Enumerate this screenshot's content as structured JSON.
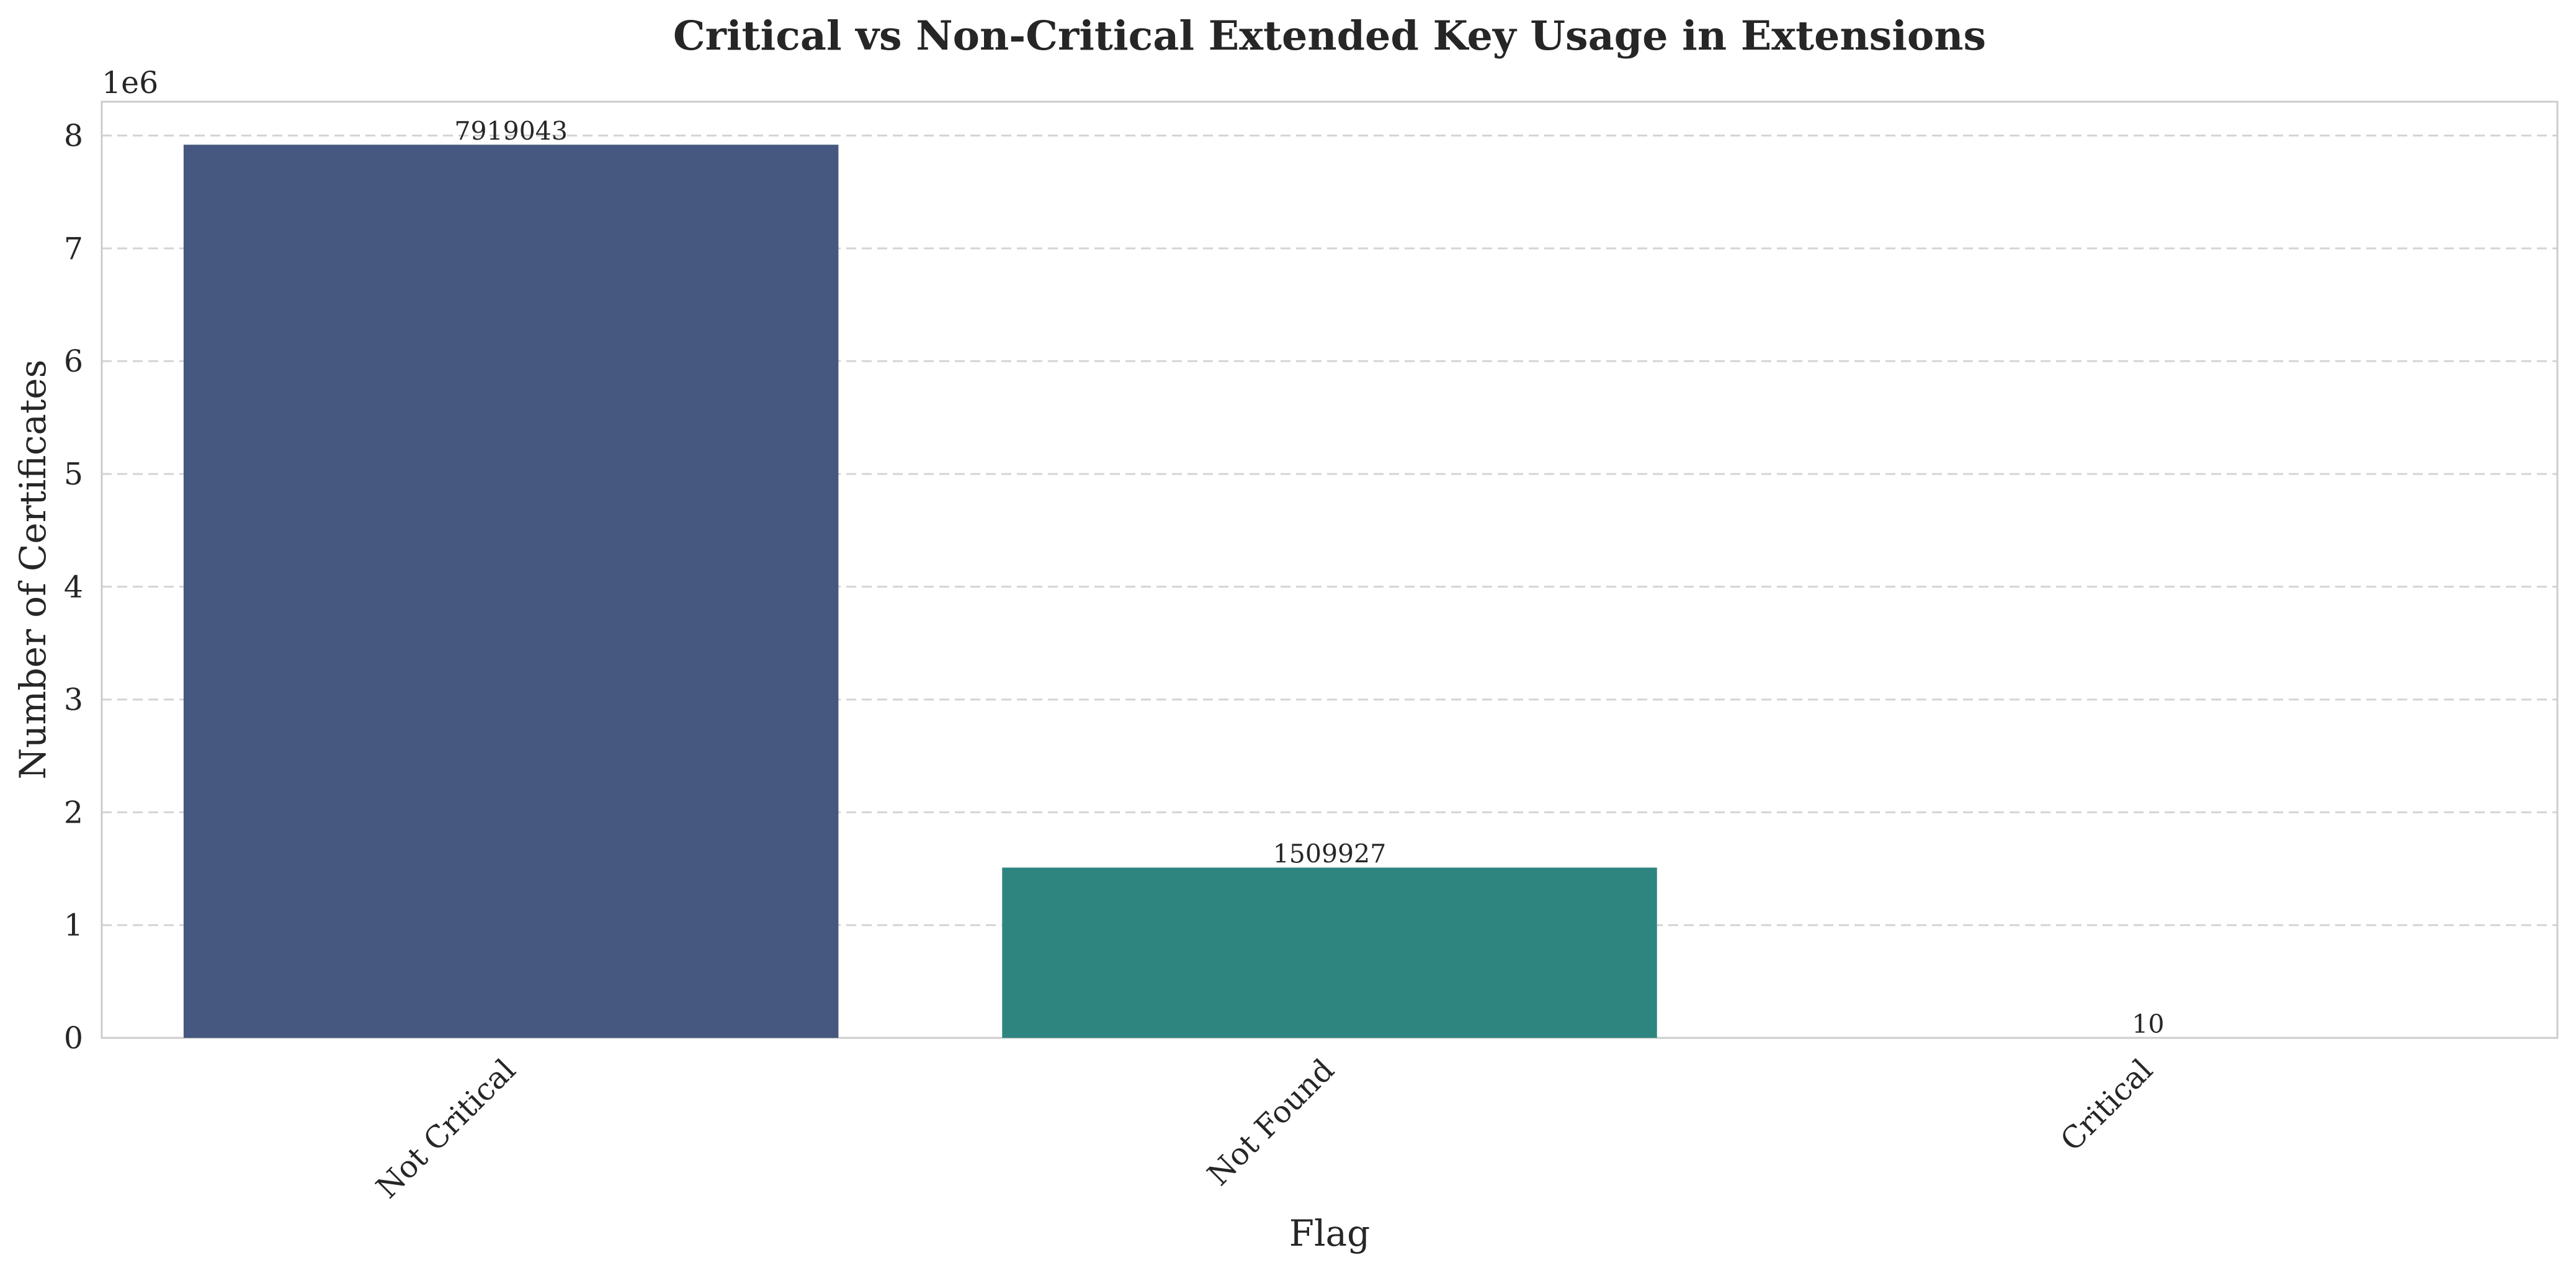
{
  "chart_data": {
    "type": "bar",
    "title": "Critical vs Non-Critical Extended Key Usage in Extensions",
    "xlabel": "Flag",
    "ylabel": "Number of Certificates",
    "y_offset_label": "1e6",
    "categories": [
      "Not Critical",
      "Not Found",
      "Critical"
    ],
    "values": [
      7919043,
      1509927,
      10
    ],
    "data_labels": [
      "7919043",
      "1509927",
      "10"
    ],
    "colors": [
      "#46587f",
      "#2e8580",
      "#58b87a"
    ],
    "ylim": [
      0,
      8300000
    ],
    "yticks": [
      0,
      1000000,
      2000000,
      3000000,
      4000000,
      5000000,
      6000000,
      7000000,
      8000000
    ],
    "ytick_labels": [
      "0",
      "1",
      "2",
      "3",
      "4",
      "5",
      "6",
      "7",
      "8"
    ],
    "grid": true,
    "grid_axis": "y",
    "grid_style": "dashed"
  }
}
